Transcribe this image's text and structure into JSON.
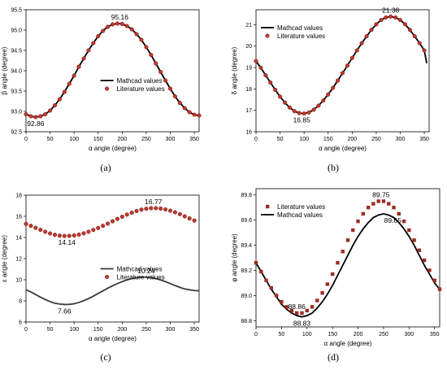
{
  "colors": {
    "mathcad": "#000000",
    "mathcad_c": "#3a3a3a",
    "literature_fill": "#c0392b",
    "literature_edge": "#6e0d0d",
    "literature_d": "#9c2d22"
  },
  "chart_data": [
    {
      "panel": "a",
      "caption": "(a)",
      "type": "line",
      "xlabel": "α angle (degree)",
      "ylabel": "β angle (degree)",
      "xlim": [
        0,
        360
      ],
      "ylim": [
        92.5,
        95.5
      ],
      "xticks": [
        "0",
        "50",
        "100",
        "150",
        "200",
        "250",
        "300",
        "350"
      ],
      "yticks": [
        "92.5",
        "93.0",
        "93.5",
        "94.0",
        "94.5",
        "95.0",
        "95.5"
      ],
      "legend": {
        "position": "center-right",
        "mathcad_label": "Mathcad values",
        "literature_label": "Literature values"
      },
      "series": [
        {
          "name": "Mathcad values",
          "kind": "line",
          "x": [
            0,
            10,
            20,
            30,
            40,
            50,
            60,
            70,
            80,
            90,
            100,
            110,
            120,
            130,
            140,
            150,
            160,
            170,
            180,
            190,
            200,
            210,
            220,
            230,
            240,
            250,
            260,
            270,
            280,
            290,
            300,
            310,
            320,
            330,
            340,
            350,
            360
          ],
          "y": [
            92.93,
            92.88,
            92.86,
            92.88,
            92.93,
            93.02,
            93.15,
            93.3,
            93.48,
            93.68,
            93.88,
            94.1,
            94.3,
            94.5,
            94.68,
            94.85,
            94.98,
            95.08,
            95.14,
            95.16,
            95.15,
            95.1,
            95.02,
            94.9,
            94.76,
            94.58,
            94.39,
            94.18,
            93.97,
            93.76,
            93.56,
            93.37,
            93.21,
            93.08,
            92.98,
            92.92,
            92.9
          ]
        },
        {
          "name": "Literature values",
          "kind": "markers",
          "x": [
            0,
            10,
            20,
            30,
            40,
            50,
            60,
            70,
            80,
            90,
            100,
            110,
            120,
            130,
            140,
            150,
            160,
            170,
            180,
            190,
            200,
            210,
            220,
            230,
            240,
            250,
            260,
            270,
            280,
            290,
            300,
            310,
            320,
            330,
            340,
            350,
            360
          ],
          "y": [
            92.93,
            92.88,
            92.86,
            92.88,
            92.93,
            93.02,
            93.15,
            93.3,
            93.48,
            93.68,
            93.88,
            94.1,
            94.3,
            94.5,
            94.68,
            94.85,
            94.98,
            95.08,
            95.14,
            95.16,
            95.15,
            95.1,
            95.02,
            94.9,
            94.76,
            94.58,
            94.39,
            94.18,
            93.97,
            93.76,
            93.56,
            93.37,
            93.21,
            93.08,
            92.98,
            92.92,
            92.9
          ]
        }
      ],
      "annotations": [
        {
          "text": "95.16",
          "x": 195,
          "y": 95.16,
          "at": "above"
        },
        {
          "text": "92.86",
          "x": 20,
          "y": 92.86,
          "at": "below"
        }
      ]
    },
    {
      "panel": "b",
      "caption": "(b)",
      "type": "line",
      "xlabel": "α angle (degree)",
      "ylabel": "δ angle (degree)",
      "xlim": [
        0,
        360
      ],
      "ylim": [
        16,
        21.7
      ],
      "xticks": [
        "0",
        "50",
        "100",
        "150",
        "200",
        "250",
        "300",
        "350"
      ],
      "yticks": [
        "16",
        "17",
        "18",
        "19",
        "20",
        "21"
      ],
      "legend": {
        "position": "top-left",
        "mathcad_label": "Mathcad values",
        "literature_label": "Literature values"
      },
      "series": [
        {
          "name": "Mathcad values",
          "kind": "line",
          "x": [
            0,
            10,
            20,
            30,
            40,
            50,
            60,
            70,
            80,
            90,
            100,
            110,
            120,
            130,
            140,
            150,
            160,
            170,
            180,
            190,
            200,
            210,
            220,
            230,
            240,
            250,
            260,
            270,
            280,
            290,
            300,
            310,
            320,
            330,
            340,
            350,
            355
          ],
          "y": [
            19.3,
            18.99,
            18.64,
            18.3,
            17.96,
            17.64,
            17.36,
            17.13,
            16.96,
            16.87,
            16.85,
            16.9,
            17.03,
            17.22,
            17.46,
            17.74,
            18.05,
            18.39,
            18.74,
            19.09,
            19.45,
            19.8,
            20.14,
            20.46,
            20.76,
            21.02,
            21.22,
            21.34,
            21.38,
            21.34,
            21.22,
            21.02,
            20.76,
            20.46,
            20.14,
            19.8,
            19.2
          ]
        },
        {
          "name": "Literature values",
          "kind": "markers",
          "x": [
            0,
            10,
            20,
            30,
            40,
            50,
            60,
            70,
            80,
            90,
            100,
            110,
            120,
            130,
            140,
            150,
            160,
            170,
            180,
            190,
            200,
            210,
            220,
            230,
            240,
            250,
            260,
            270,
            280,
            290,
            300,
            310,
            320,
            330,
            340,
            350
          ],
          "y": [
            19.3,
            18.99,
            18.64,
            18.3,
            17.96,
            17.64,
            17.36,
            17.13,
            16.96,
            16.87,
            16.85,
            16.9,
            17.03,
            17.22,
            17.46,
            17.74,
            18.05,
            18.39,
            18.74,
            19.09,
            19.45,
            19.8,
            20.14,
            20.46,
            20.76,
            21.02,
            21.22,
            21.34,
            21.38,
            21.34,
            21.22,
            21.02,
            20.76,
            20.46,
            20.14,
            19.8
          ]
        }
      ],
      "annotations": [
        {
          "text": "21.38",
          "x": 280,
          "y": 21.38,
          "at": "above"
        },
        {
          "text": "16.85",
          "x": 95,
          "y": 16.85,
          "at": "below"
        }
      ]
    },
    {
      "panel": "c",
      "caption": "(c)",
      "type": "line",
      "xlabel": "α angle (degree)",
      "ylabel": "ε angle (degree)",
      "xlim": [
        0,
        360
      ],
      "ylim": [
        6,
        18
      ],
      "xticks": [
        "0",
        "50",
        "100",
        "150",
        "200",
        "250",
        "300",
        "350"
      ],
      "yticks": [
        "6",
        "8",
        "10",
        "12",
        "14",
        "16",
        "18"
      ],
      "legend": {
        "position": "center-right",
        "mathcad_label": "Mathcad values",
        "literature_label": "Literature values"
      },
      "series": [
        {
          "name": "Mathcad values",
          "kind": "line",
          "x": [
            0,
            10,
            20,
            30,
            40,
            50,
            60,
            70,
            80,
            90,
            100,
            110,
            120,
            130,
            140,
            150,
            160,
            170,
            180,
            190,
            200,
            210,
            220,
            230,
            240,
            250,
            260,
            270,
            280,
            290,
            300,
            310,
            320,
            330,
            340,
            350,
            360
          ],
          "y": [
            9.05,
            8.85,
            8.6,
            8.35,
            8.13,
            7.93,
            7.78,
            7.7,
            7.66,
            7.67,
            7.73,
            7.85,
            8.02,
            8.22,
            8.45,
            8.7,
            8.95,
            9.2,
            9.43,
            9.64,
            9.82,
            9.98,
            10.11,
            10.2,
            10.24,
            10.24,
            10.2,
            10.11,
            9.98,
            9.82,
            9.64,
            9.45,
            9.28,
            9.13,
            9.05,
            8.98,
            8.95
          ]
        },
        {
          "name": "Literature values",
          "kind": "markers",
          "x": [
            0,
            10,
            20,
            30,
            40,
            50,
            60,
            70,
            80,
            90,
            100,
            110,
            120,
            130,
            140,
            150,
            160,
            170,
            180,
            190,
            200,
            210,
            220,
            230,
            240,
            250,
            260,
            270,
            280,
            290,
            300,
            310,
            320,
            330,
            340,
            350
          ],
          "y": [
            15.28,
            15.1,
            14.91,
            14.72,
            14.54,
            14.38,
            14.25,
            14.17,
            14.14,
            14.15,
            14.19,
            14.27,
            14.39,
            14.54,
            14.71,
            14.9,
            15.1,
            15.31,
            15.53,
            15.75,
            15.96,
            16.16,
            16.34,
            16.5,
            16.63,
            16.72,
            16.77,
            16.77,
            16.73,
            16.65,
            16.53,
            16.38,
            16.2,
            16.0,
            15.8,
            15.6
          ]
        }
      ],
      "annotations": [
        {
          "text": "16.77",
          "x": 265,
          "y": 16.77,
          "at": "above"
        },
        {
          "text": "14.14",
          "x": 85,
          "y": 14.14,
          "at": "below"
        },
        {
          "text": "10.24",
          "x": 250,
          "y": 10.24,
          "at": "above"
        },
        {
          "text": "7.66",
          "x": 80,
          "y": 7.66,
          "at": "below"
        }
      ]
    },
    {
      "panel": "d",
      "caption": "(d)",
      "type": "line",
      "xlabel": "α angle (degree)",
      "ylabel": "φ angle (degree)",
      "xlim": [
        0,
        360
      ],
      "ylim": [
        88.75,
        89.85
      ],
      "xticks": [
        "0",
        "50",
        "100",
        "150",
        "200",
        "250",
        "300",
        "350"
      ],
      "yticks": [
        "88.8",
        "89.0",
        "89.2",
        "89.4",
        "89.6",
        "89.8"
      ],
      "legend": {
        "position": "top-left",
        "mathcad_label": "Mathcad values",
        "literature_label": "Literature values"
      },
      "series": [
        {
          "name": "Mathcad values",
          "kind": "line",
          "x": [
            0,
            10,
            20,
            30,
            40,
            50,
            60,
            70,
            80,
            90,
            100,
            110,
            120,
            130,
            140,
            150,
            160,
            170,
            180,
            190,
            200,
            210,
            220,
            230,
            240,
            250,
            260,
            270,
            280,
            290,
            300,
            310,
            320,
            330,
            340,
            350,
            360
          ],
          "y": [
            89.26,
            89.19,
            89.12,
            89.05,
            88.99,
            88.93,
            88.89,
            88.86,
            88.84,
            88.83,
            88.84,
            88.86,
            88.9,
            88.95,
            89.01,
            89.08,
            89.16,
            89.24,
            89.32,
            89.4,
            89.47,
            89.53,
            89.58,
            89.62,
            89.64,
            89.65,
            89.64,
            89.62,
            89.58,
            89.53,
            89.47,
            89.4,
            89.32,
            89.24,
            89.17,
            89.1,
            89.05
          ]
        },
        {
          "name": "Literature values",
          "kind": "markers",
          "x": [
            0,
            10,
            20,
            30,
            40,
            50,
            60,
            70,
            80,
            90,
            100,
            110,
            120,
            130,
            140,
            150,
            160,
            170,
            180,
            190,
            200,
            210,
            220,
            230,
            240,
            250,
            260,
            270,
            280,
            290,
            300,
            310,
            320,
            330,
            340,
            350,
            360
          ],
          "y": [
            89.26,
            89.19,
            89.12,
            89.06,
            89.0,
            88.95,
            88.91,
            88.88,
            88.86,
            88.86,
            88.88,
            88.91,
            88.96,
            89.02,
            89.09,
            89.17,
            89.26,
            89.35,
            89.44,
            89.52,
            89.59,
            89.65,
            89.7,
            89.73,
            89.75,
            89.75,
            89.73,
            89.7,
            89.65,
            89.59,
            89.52,
            89.44,
            89.36,
            89.28,
            89.2,
            89.12,
            89.05
          ]
        }
      ],
      "annotations": [
        {
          "text": "89.75",
          "x": 245,
          "y": 89.75,
          "at": "above"
        },
        {
          "text": "89.65",
          "x": 268,
          "y": 89.65,
          "at": "below"
        },
        {
          "text": "88.86",
          "x": 80,
          "y": 88.86,
          "at": "above"
        },
        {
          "text": "88.83",
          "x": 90,
          "y": 88.83,
          "at": "below"
        }
      ]
    }
  ]
}
